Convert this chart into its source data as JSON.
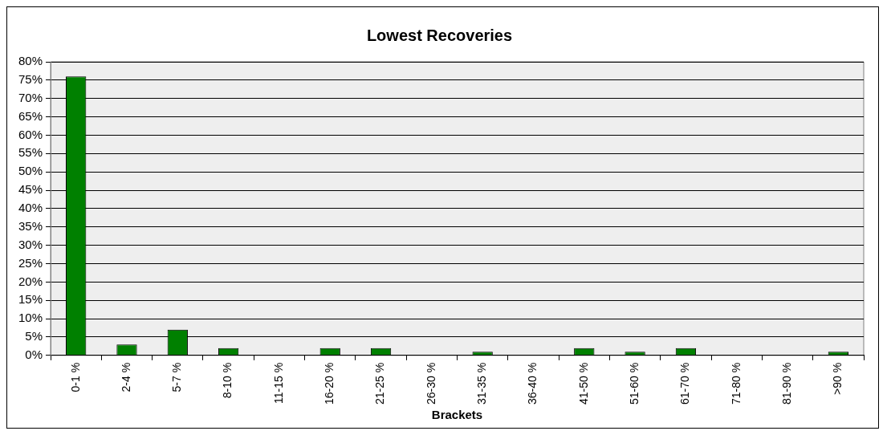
{
  "chart_data": {
    "type": "bar",
    "title": "Lowest Recoveries",
    "xlabel": "Brackets",
    "categories": [
      "0-1 %",
      "2-4 %",
      "5-7 %",
      "8-10 %",
      "11-15 %",
      "16-20 %",
      "21-25 %",
      "26-30 %",
      "31-35 %",
      "36-40 %",
      "41-50 %",
      "51-60 %",
      "61-70 %",
      "71-80 %",
      "81-90 %",
      ">90 %"
    ],
    "values": [
      76,
      3,
      7,
      2,
      0,
      2,
      2,
      0,
      1,
      0,
      2,
      1,
      2,
      0,
      0,
      1
    ],
    "color": "#008000",
    "ylim": [
      0,
      80
    ],
    "yticks": [
      {
        "value": 0,
        "label": "0%"
      },
      {
        "value": 5,
        "label": "5%"
      },
      {
        "value": 10,
        "label": "10%"
      },
      {
        "value": 15,
        "label": "15%"
      },
      {
        "value": 20,
        "label": "20%"
      },
      {
        "value": 25,
        "label": "25%"
      },
      {
        "value": 30,
        "label": "30%"
      },
      {
        "value": 35,
        "label": "35%"
      },
      {
        "value": 40,
        "label": "40%"
      },
      {
        "value": 45,
        "label": "45%"
      },
      {
        "value": 50,
        "label": "50%"
      },
      {
        "value": 55,
        "label": "55%"
      },
      {
        "value": 60,
        "label": "60%"
      },
      {
        "value": 65,
        "label": "65%"
      },
      {
        "value": 70,
        "label": "70%"
      },
      {
        "value": 75,
        "label": "75%"
      },
      {
        "value": 80,
        "label": "80%"
      }
    ],
    "grid": "y",
    "legend": false
  }
}
